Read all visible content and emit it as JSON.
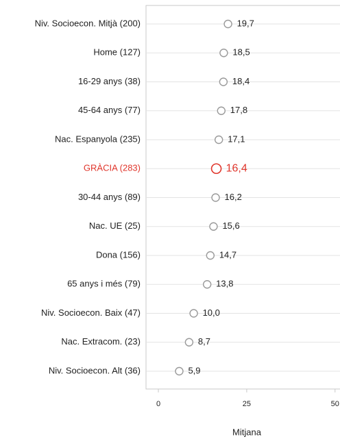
{
  "chart_data": {
    "type": "dot",
    "categories": [
      "Niv. Socioecon. Mitjà (200)",
      "Home (127)",
      "16-29 anys (38)",
      "45-64 anys (77)",
      "Nac. Espanyola (235)",
      "GRÀCIA (283)",
      "30-44 anys (89)",
      "Nac. UE (25)",
      "Dona (156)",
      "65 anys i més (79)",
      "Niv. Socioecon. Baix (47)",
      "Nac. Extracom. (23)",
      "Niv. Socioecon. Alt (36)"
    ],
    "values": [
      19.7,
      18.5,
      18.4,
      17.8,
      17.1,
      16.4,
      16.2,
      15.6,
      14.7,
      13.8,
      10.0,
      8.7,
      5.9
    ],
    "value_labels": [
      "19,7",
      "18,5",
      "18,4",
      "17,8",
      "17,1",
      "16,4",
      "16,2",
      "15,6",
      "14,7",
      "13,8",
      "10,0",
      "8,7",
      "5,9"
    ],
    "color": "#9a9a9a",
    "point_colors": [
      "#9a9a9a",
      "#9a9a9a",
      "#9a9a9a",
      "#9a9a9a",
      "#9a9a9a",
      "#e0362c",
      "#9a9a9a",
      "#9a9a9a",
      "#9a9a9a",
      "#9a9a9a",
      "#9a9a9a",
      "#9a9a9a",
      "#9a9a9a"
    ],
    "xlabel": "Mitjana",
    "xlim": [
      -3.5,
      51.4
    ],
    "xticks": [
      0,
      25,
      50
    ],
    "grid": true
  }
}
